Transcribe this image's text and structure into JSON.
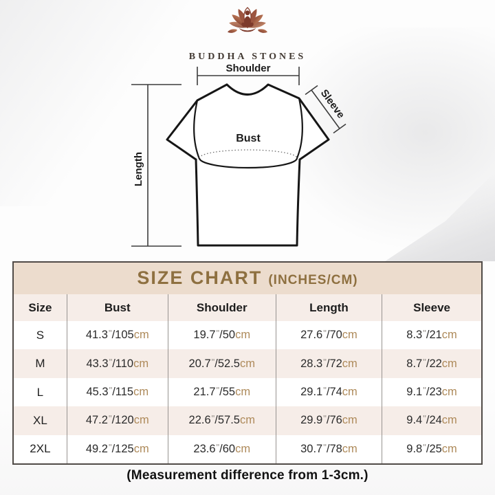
{
  "brand": {
    "name": "BUDDHA STONES",
    "logo_icon": "lotus-meditation-icon"
  },
  "diagram": {
    "labels": {
      "shoulder": "Shoulder",
      "sleeve": "Sleeve",
      "bust": "Bust",
      "length": "Length"
    }
  },
  "size_chart": {
    "title_main": "SIZE CHART",
    "title_sub": "(INCHES/CM)",
    "columns": [
      "Size",
      "Bust",
      "Shoulder",
      "Length",
      "Sleeve"
    ],
    "units": {
      "inch_mark": "\"",
      "slash": "/",
      "cm_label": "cm"
    },
    "rows": [
      {
        "size": "S",
        "bust": {
          "in": "41.3",
          "cm": "105"
        },
        "shoulder": {
          "in": "19.7",
          "cm": "50"
        },
        "length": {
          "in": "27.6",
          "cm": "70"
        },
        "sleeve": {
          "in": "8.3",
          "cm": "21"
        }
      },
      {
        "size": "M",
        "bust": {
          "in": "43.3",
          "cm": "110"
        },
        "shoulder": {
          "in": "20.7",
          "cm": "52.5"
        },
        "length": {
          "in": "28.3",
          "cm": "72"
        },
        "sleeve": {
          "in": "8.7",
          "cm": "22"
        }
      },
      {
        "size": "L",
        "bust": {
          "in": "45.3",
          "cm": "115"
        },
        "shoulder": {
          "in": "21.7",
          "cm": "55"
        },
        "length": {
          "in": "29.1",
          "cm": "74"
        },
        "sleeve": {
          "in": "9.1",
          "cm": "23"
        }
      },
      {
        "size": "XL",
        "bust": {
          "in": "47.2",
          "cm": "120"
        },
        "shoulder": {
          "in": "22.6",
          "cm": "57.5"
        },
        "length": {
          "in": "29.9",
          "cm": "76"
        },
        "sleeve": {
          "in": "9.4",
          "cm": "24"
        }
      },
      {
        "size": "2XL",
        "bust": {
          "in": "49.2",
          "cm": "125"
        },
        "shoulder": {
          "in": "23.6",
          "cm": "60"
        },
        "length": {
          "in": "30.7",
          "cm": "78"
        },
        "sleeve": {
          "in": "9.8",
          "cm": "25"
        }
      }
    ]
  },
  "footer": {
    "note": "(Measurement difference from 1-3cm.)"
  },
  "colors": {
    "title_band_bg": "#ecdccd",
    "title_text": "#8e7040",
    "alt_row_bg": "#f6ede8",
    "cm_text": "#ae8a5a",
    "number_text": "#2a2a2a",
    "table_border": "#4f4a46",
    "logo_dark": "#7d3a2b",
    "logo_light": "#c4805c"
  }
}
